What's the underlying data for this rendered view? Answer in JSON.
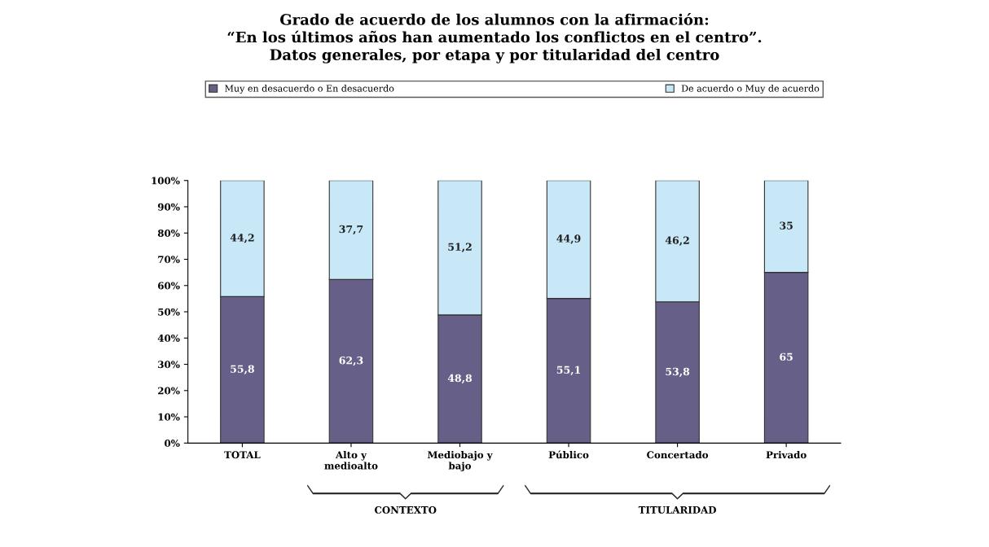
{
  "chart_data": {
    "type": "bar",
    "stacked": true,
    "title": "Grado de acuerdo de los alumnos con la afirmación:\n“En los últimos años han aumentado los conflictos en el centro”.\nDatos generales, por etapa y por titularidad del centro",
    "categories": [
      "TOTAL",
      "Alto y\nmedioalto",
      "Mediobajo y\nbajo",
      "Público",
      "Concertado",
      "Privado"
    ],
    "series": [
      {
        "name": "Muy en desacuerdo o En desacuerdo",
        "color": "#666088",
        "values": [
          55.8,
          62.3,
          48.8,
          55.1,
          53.8,
          65
        ],
        "value_labels": [
          "55,8",
          "62,3",
          "48,8",
          "55,1",
          "53,8",
          "65"
        ]
      },
      {
        "name": "De acuerdo o Muy de acuerdo",
        "color": "#c8e8f8",
        "values": [
          44.2,
          37.7,
          51.2,
          44.9,
          46.2,
          35
        ],
        "value_labels": [
          "44,2",
          "37,7",
          "51,2",
          "44,9",
          "46,2",
          "35"
        ]
      }
    ],
    "ylim": [
      0,
      100
    ],
    "yticks": [
      {
        "value": 0,
        "label": "0%"
      },
      {
        "value": 10,
        "label": "10%"
      },
      {
        "value": 20,
        "label": "20%"
      },
      {
        "value": 30,
        "label": "30%"
      },
      {
        "value": 40,
        "label": "40%"
      },
      {
        "value": 50,
        "label": "50%"
      },
      {
        "value": 60,
        "label": "60%"
      },
      {
        "value": 70,
        "label": "70%"
      },
      {
        "value": 80,
        "label": "80%"
      },
      {
        "value": 90,
        "label": "90%"
      },
      {
        "value": 100,
        "label": "100%"
      }
    ],
    "annotations": [
      "CONTEXTO",
      "TITULARIDAD"
    ],
    "grid": false,
    "legend": "top"
  }
}
